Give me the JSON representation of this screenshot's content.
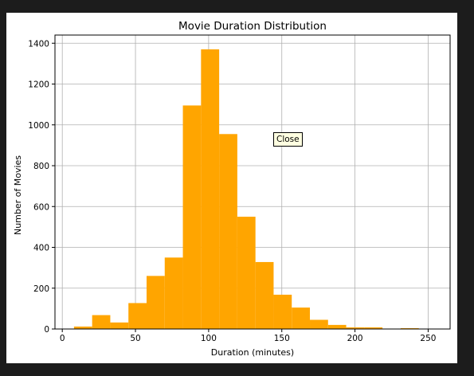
{
  "tooltip": {
    "text": "Close"
  },
  "colors": {
    "bar": "#ffa500",
    "grid": "#b0b0b0",
    "axis": "#000000"
  },
  "chart_data": {
    "type": "bar",
    "title": "Movie Duration Distribution",
    "xlabel": "Duration (minutes)",
    "ylabel": "Number of Movies",
    "xlim": [
      -5,
      265
    ],
    "ylim": [
      0,
      1440
    ],
    "xticks": [
      0,
      50,
      100,
      150,
      200,
      250
    ],
    "yticks": [
      0,
      200,
      400,
      600,
      800,
      1000,
      1200,
      1400
    ],
    "grid": true,
    "bin_edges": [
      8,
      20.4,
      32.8,
      45.2,
      57.6,
      70,
      82.4,
      94.8,
      107.2,
      119.6,
      132,
      144.4,
      156.8,
      169.2,
      181.6,
      194,
      206.4,
      218.8,
      231.2,
      243.6,
      256
    ],
    "values": [
      12,
      68,
      32,
      127,
      260,
      350,
      1095,
      1370,
      955,
      550,
      328,
      168,
      105,
      45,
      20,
      8,
      8,
      2,
      4,
      1
    ]
  }
}
